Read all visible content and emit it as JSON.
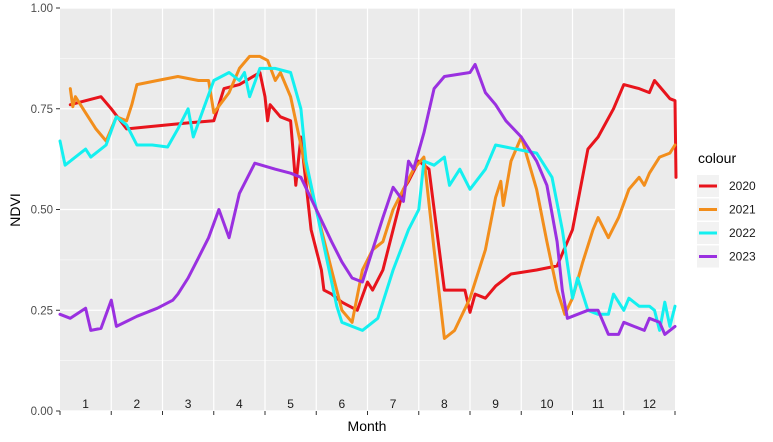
{
  "chart_data": {
    "type": "line",
    "xlabel": "Month",
    "ylabel": "NDVI",
    "xlim": [
      0.5,
      12.5
    ],
    "ylim": [
      0,
      1
    ],
    "y_ticks": [
      "0.00",
      "0.25",
      "0.50",
      "0.75",
      "1.00"
    ],
    "x_ticks": [
      "1",
      "2",
      "3",
      "4",
      "5",
      "6",
      "7",
      "8",
      "9",
      "10",
      "11",
      "12"
    ],
    "legend_title": "colour",
    "legend_position": "right",
    "grid": true,
    "colors": {
      "2020": "#e8141c",
      "2021": "#f28e1c",
      "2022": "#14f0f0",
      "2023": "#9a30e0"
    },
    "series": [
      {
        "name": "2020",
        "points": [
          [
            0.7,
            0.76
          ],
          [
            1.0,
            0.77
          ],
          [
            1.3,
            0.78
          ],
          [
            1.5,
            0.75
          ],
          [
            1.8,
            0.7
          ],
          [
            2.2,
            0.705
          ],
          [
            2.6,
            0.71
          ],
          [
            3.0,
            0.715
          ],
          [
            3.5,
            0.72
          ],
          [
            3.7,
            0.8
          ],
          [
            4.0,
            0.81
          ],
          [
            4.4,
            0.84
          ],
          [
            4.5,
            0.78
          ],
          [
            4.55,
            0.72
          ],
          [
            4.6,
            0.76
          ],
          [
            4.8,
            0.73
          ],
          [
            5.0,
            0.72
          ],
          [
            5.1,
            0.56
          ],
          [
            5.2,
            0.68
          ],
          [
            5.4,
            0.45
          ],
          [
            5.6,
            0.35
          ],
          [
            5.65,
            0.3
          ],
          [
            5.8,
            0.29
          ],
          [
            6.0,
            0.27
          ],
          [
            6.3,
            0.25
          ],
          [
            6.5,
            0.32
          ],
          [
            6.6,
            0.3
          ],
          [
            6.8,
            0.35
          ],
          [
            7.0,
            0.45
          ],
          [
            7.2,
            0.55
          ],
          [
            7.3,
            0.57
          ],
          [
            7.5,
            0.62
          ],
          [
            7.7,
            0.6
          ],
          [
            8.0,
            0.3
          ],
          [
            8.4,
            0.3
          ],
          [
            8.5,
            0.245
          ],
          [
            8.6,
            0.29
          ],
          [
            8.8,
            0.28
          ],
          [
            9.0,
            0.31
          ],
          [
            9.3,
            0.34
          ],
          [
            9.8,
            0.35
          ],
          [
            10.2,
            0.36
          ],
          [
            10.5,
            0.45
          ],
          [
            10.8,
            0.65
          ],
          [
            11.0,
            0.68
          ],
          [
            11.3,
            0.75
          ],
          [
            11.5,
            0.81
          ],
          [
            11.8,
            0.8
          ],
          [
            12.0,
            0.79
          ],
          [
            12.1,
            0.82
          ],
          [
            12.3,
            0.79
          ],
          [
            12.4,
            0.775
          ],
          [
            12.5,
            0.77
          ],
          [
            12.52,
            0.58
          ]
        ]
      },
      {
        "name": "2021",
        "points": [
          [
            0.7,
            0.8
          ],
          [
            0.75,
            0.755
          ],
          [
            0.8,
            0.78
          ],
          [
            1.0,
            0.74
          ],
          [
            1.2,
            0.7
          ],
          [
            1.4,
            0.67
          ],
          [
            1.6,
            0.73
          ],
          [
            1.8,
            0.72
          ],
          [
            1.9,
            0.76
          ],
          [
            2.0,
            0.81
          ],
          [
            2.4,
            0.82
          ],
          [
            2.8,
            0.83
          ],
          [
            3.2,
            0.82
          ],
          [
            3.4,
            0.82
          ],
          [
            3.5,
            0.74
          ],
          [
            3.8,
            0.79
          ],
          [
            4.0,
            0.85
          ],
          [
            4.2,
            0.88
          ],
          [
            4.4,
            0.88
          ],
          [
            4.55,
            0.87
          ],
          [
            4.7,
            0.82
          ],
          [
            4.8,
            0.84
          ],
          [
            5.0,
            0.78
          ],
          [
            5.3,
            0.6
          ],
          [
            5.6,
            0.45
          ],
          [
            5.8,
            0.35
          ],
          [
            6.0,
            0.25
          ],
          [
            6.2,
            0.22
          ],
          [
            6.4,
            0.35
          ],
          [
            6.6,
            0.4
          ],
          [
            6.8,
            0.42
          ],
          [
            7.0,
            0.5
          ],
          [
            7.2,
            0.55
          ],
          [
            7.4,
            0.6
          ],
          [
            7.6,
            0.63
          ],
          [
            7.8,
            0.4
          ],
          [
            8.0,
            0.18
          ],
          [
            8.2,
            0.2
          ],
          [
            8.5,
            0.28
          ],
          [
            8.8,
            0.4
          ],
          [
            9.0,
            0.53
          ],
          [
            9.1,
            0.57
          ],
          [
            9.15,
            0.51
          ],
          [
            9.3,
            0.62
          ],
          [
            9.5,
            0.68
          ],
          [
            9.8,
            0.55
          ],
          [
            10.0,
            0.42
          ],
          [
            10.2,
            0.3
          ],
          [
            10.35,
            0.24
          ],
          [
            10.5,
            0.28
          ],
          [
            10.7,
            0.37
          ],
          [
            10.9,
            0.45
          ],
          [
            11.0,
            0.48
          ],
          [
            11.2,
            0.43
          ],
          [
            11.4,
            0.48
          ],
          [
            11.6,
            0.55
          ],
          [
            11.8,
            0.58
          ],
          [
            11.9,
            0.56
          ],
          [
            12.0,
            0.59
          ],
          [
            12.2,
            0.63
          ],
          [
            12.4,
            0.64
          ],
          [
            12.5,
            0.66
          ]
        ]
      },
      {
        "name": "2022",
        "points": [
          [
            0.5,
            0.67
          ],
          [
            0.6,
            0.61
          ],
          [
            0.8,
            0.63
          ],
          [
            1.0,
            0.65
          ],
          [
            1.1,
            0.63
          ],
          [
            1.2,
            0.64
          ],
          [
            1.4,
            0.66
          ],
          [
            1.6,
            0.73
          ],
          [
            1.8,
            0.71
          ],
          [
            2.0,
            0.66
          ],
          [
            2.3,
            0.66
          ],
          [
            2.6,
            0.655
          ],
          [
            2.8,
            0.7
          ],
          [
            3.0,
            0.75
          ],
          [
            3.1,
            0.68
          ],
          [
            3.3,
            0.75
          ],
          [
            3.5,
            0.82
          ],
          [
            3.8,
            0.84
          ],
          [
            4.0,
            0.82
          ],
          [
            4.1,
            0.84
          ],
          [
            4.2,
            0.78
          ],
          [
            4.4,
            0.85
          ],
          [
            4.7,
            0.85
          ],
          [
            5.0,
            0.84
          ],
          [
            5.2,
            0.75
          ],
          [
            5.3,
            0.62
          ],
          [
            5.5,
            0.5
          ],
          [
            5.7,
            0.38
          ],
          [
            5.9,
            0.26
          ],
          [
            6.0,
            0.22
          ],
          [
            6.2,
            0.21
          ],
          [
            6.4,
            0.2
          ],
          [
            6.7,
            0.23
          ],
          [
            7.0,
            0.35
          ],
          [
            7.3,
            0.45
          ],
          [
            7.5,
            0.5
          ],
          [
            7.6,
            0.62
          ],
          [
            7.8,
            0.61
          ],
          [
            8.0,
            0.63
          ],
          [
            8.1,
            0.56
          ],
          [
            8.3,
            0.6
          ],
          [
            8.5,
            0.55
          ],
          [
            8.8,
            0.6
          ],
          [
            9.0,
            0.66
          ],
          [
            9.4,
            0.65
          ],
          [
            9.8,
            0.64
          ],
          [
            10.1,
            0.58
          ],
          [
            10.3,
            0.45
          ],
          [
            10.5,
            0.28
          ],
          [
            10.6,
            0.33
          ],
          [
            10.8,
            0.25
          ],
          [
            11.0,
            0.24
          ],
          [
            11.2,
            0.24
          ],
          [
            11.3,
            0.29
          ],
          [
            11.5,
            0.25
          ],
          [
            11.6,
            0.28
          ],
          [
            11.8,
            0.26
          ],
          [
            12.0,
            0.26
          ],
          [
            12.1,
            0.25
          ],
          [
            12.2,
            0.2
          ],
          [
            12.3,
            0.27
          ],
          [
            12.4,
            0.21
          ],
          [
            12.5,
            0.26
          ]
        ]
      },
      {
        "name": "2023",
        "points": [
          [
            0.5,
            0.24
          ],
          [
            0.7,
            0.23
          ],
          [
            1.0,
            0.255
          ],
          [
            1.1,
            0.2
          ],
          [
            1.3,
            0.205
          ],
          [
            1.5,
            0.275
          ],
          [
            1.6,
            0.21
          ],
          [
            2.0,
            0.235
          ],
          [
            2.4,
            0.255
          ],
          [
            2.7,
            0.275
          ],
          [
            2.8,
            0.29
          ],
          [
            3.0,
            0.33
          ],
          [
            3.2,
            0.38
          ],
          [
            3.4,
            0.43
          ],
          [
            3.6,
            0.5
          ],
          [
            3.8,
            0.43
          ],
          [
            4.0,
            0.54
          ],
          [
            4.3,
            0.615
          ],
          [
            4.7,
            0.6
          ],
          [
            5.0,
            0.59
          ],
          [
            5.2,
            0.58
          ],
          [
            5.5,
            0.5
          ],
          [
            5.8,
            0.42
          ],
          [
            6.0,
            0.37
          ],
          [
            6.2,
            0.33
          ],
          [
            6.4,
            0.32
          ],
          [
            6.6,
            0.4
          ],
          [
            6.8,
            0.48
          ],
          [
            7.0,
            0.555
          ],
          [
            7.2,
            0.52
          ],
          [
            7.3,
            0.62
          ],
          [
            7.4,
            0.6
          ],
          [
            7.6,
            0.69
          ],
          [
            7.8,
            0.8
          ],
          [
            8.0,
            0.83
          ],
          [
            8.5,
            0.84
          ],
          [
            8.6,
            0.86
          ],
          [
            8.8,
            0.79
          ],
          [
            9.0,
            0.76
          ],
          [
            9.2,
            0.72
          ],
          [
            9.5,
            0.68
          ],
          [
            9.8,
            0.62
          ],
          [
            10.0,
            0.56
          ],
          [
            10.2,
            0.42
          ],
          [
            10.3,
            0.3
          ],
          [
            10.4,
            0.23
          ],
          [
            10.6,
            0.24
          ],
          [
            10.8,
            0.25
          ],
          [
            11.0,
            0.25
          ],
          [
            11.2,
            0.19
          ],
          [
            11.4,
            0.19
          ],
          [
            11.5,
            0.22
          ],
          [
            11.7,
            0.21
          ],
          [
            11.9,
            0.2
          ],
          [
            12.0,
            0.23
          ],
          [
            12.2,
            0.22
          ],
          [
            12.3,
            0.19
          ],
          [
            12.5,
            0.21
          ]
        ]
      }
    ]
  }
}
